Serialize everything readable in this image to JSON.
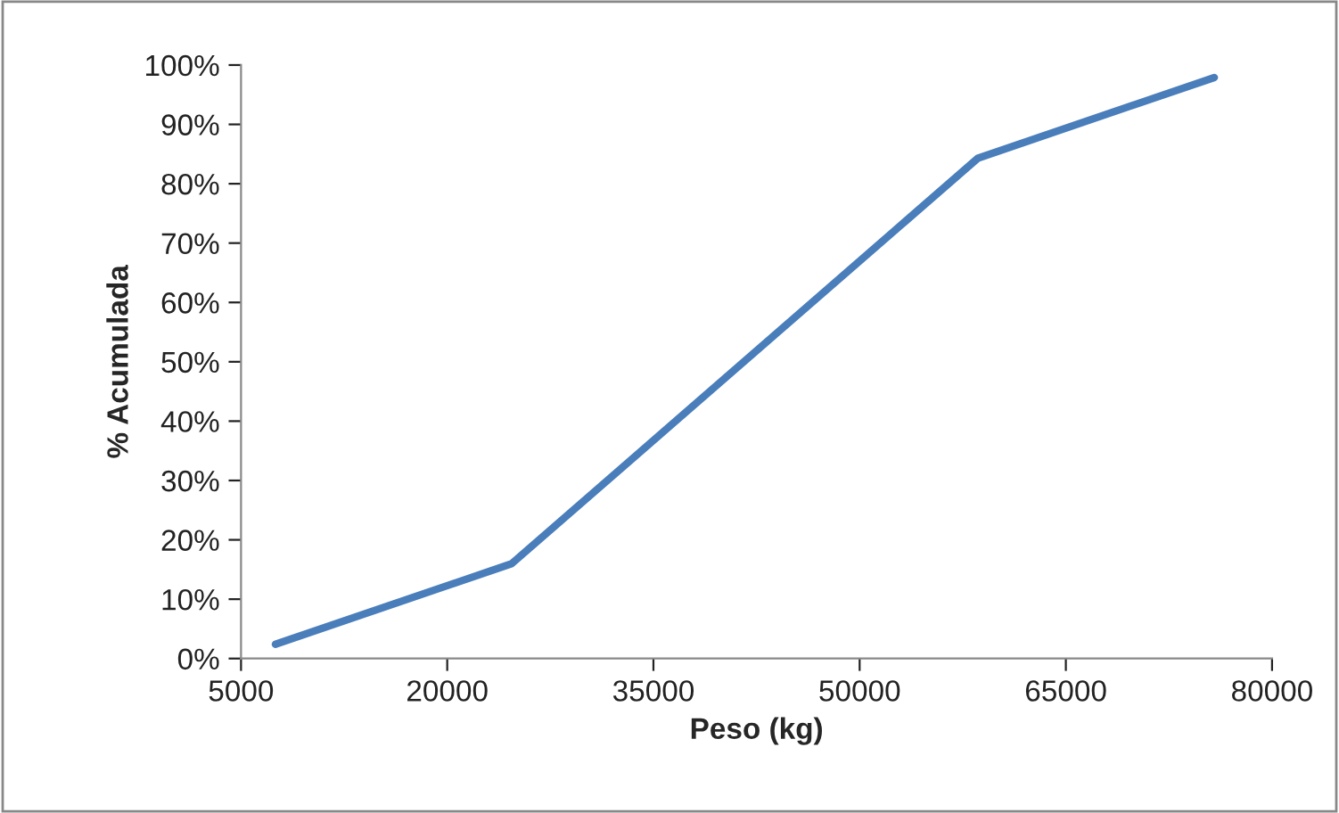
{
  "chart_data": {
    "type": "line",
    "xlabel": "Peso (kg)",
    "ylabel": "% Acumulada",
    "x": [
      7500,
      24700,
      58600,
      75800
    ],
    "series": [
      {
        "color": "#4a7ebb",
        "values": [
          2.4,
          16,
          84.3,
          97.9
        ]
      }
    ],
    "xlim": [
      5000,
      80000
    ],
    "xticks": [
      5000,
      20000,
      35000,
      50000,
      65000,
      80000
    ],
    "ylim": [
      0,
      100
    ],
    "yticks": [
      {
        "value": 0,
        "label": "0%"
      },
      {
        "value": 10,
        "label": "10%"
      },
      {
        "value": 20,
        "label": "20%"
      },
      {
        "value": 30,
        "label": "30%"
      },
      {
        "value": 40,
        "label": "40%"
      },
      {
        "value": 50,
        "label": "50%"
      },
      {
        "value": 60,
        "label": "60%"
      },
      {
        "value": 70,
        "label": "70%"
      },
      {
        "value": 80,
        "label": "80%"
      },
      {
        "value": 90,
        "label": "90%"
      },
      {
        "value": 100,
        "label": "100%"
      }
    ],
    "grid": false,
    "legend": false,
    "marker": "none",
    "line_style": "solid"
  }
}
